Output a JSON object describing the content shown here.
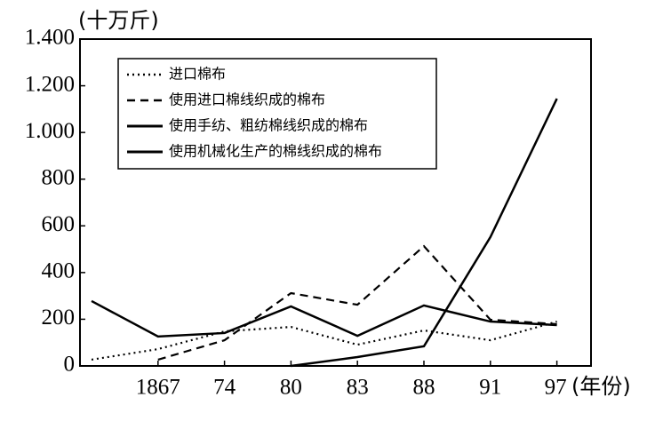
{
  "chart_data": {
    "type": "line",
    "y_label": "(十万斤)",
    "x_label": "(年份)",
    "categories": [
      null,
      "1867",
      "74",
      "80",
      "83",
      "88",
      "91",
      "97"
    ],
    "series": [
      {
        "name": "进口棉布",
        "color": "#000000",
        "style": "dotted",
        "values": [
          27,
          72,
          148,
          167,
          91,
          152,
          110,
          190
        ]
      },
      {
        "name": "使用进口棉线织成的棉布",
        "color": "#000000",
        "style": "dashed",
        "values": [
          null,
          27,
          110,
          312,
          262,
          513,
          198,
          179
        ]
      },
      {
        "name": "使用手纺、粗纺棉线织成的棉布",
        "color": "#000000",
        "style": "solid",
        "values": [
          278,
          126,
          141,
          255,
          129,
          259,
          190,
          175
        ]
      },
      {
        "name": "使用机械化生产的棉线织成的棉布",
        "color": "#000000",
        "style": "solid",
        "values": [
          null,
          null,
          null,
          0,
          38,
          84,
          552,
          1145
        ]
      }
    ],
    "ylim": [
      0,
      1400
    ],
    "yticks": [
      0,
      200,
      400,
      600,
      800,
      {
        "value": 1000,
        "label": "1.000"
      },
      {
        "value": 1200,
        "label": "1.200"
      },
      {
        "value": 1400,
        "label": "1.400"
      }
    ],
    "legend_position": "upper left"
  }
}
